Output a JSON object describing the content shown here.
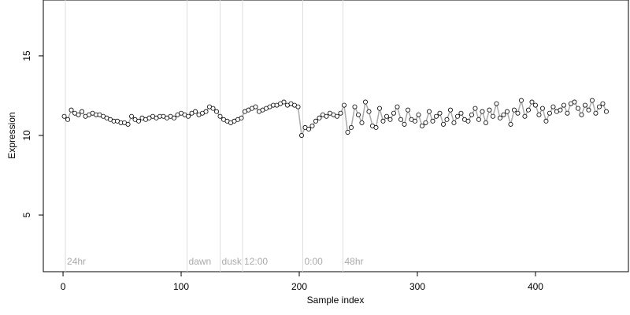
{
  "chart_data": {
    "type": "scatter",
    "x_label": "Sample index",
    "y_label": "Expression",
    "xlim": [
      -16.7,
      478.7
    ],
    "ylim": [
      1.44,
      18.51
    ],
    "xticks": [
      0,
      100,
      200,
      300,
      400
    ],
    "yticks": [
      5,
      10,
      15
    ],
    "point_color": "#ffffff",
    "line_color": "#aaaaaa",
    "annotations": [
      {
        "x": 2,
        "label": "24hr"
      },
      {
        "x": 105,
        "label": "dawn"
      },
      {
        "x": 133,
        "label": "dusk"
      },
      {
        "x": 152,
        "label": "12:00"
      },
      {
        "x": 203,
        "label": "0:00"
      },
      {
        "x": 237,
        "label": "48hr"
      }
    ],
    "x": [
      1,
      4,
      7,
      10,
      13,
      16,
      19,
      22,
      25,
      28,
      31,
      34,
      37,
      40,
      43,
      46,
      49,
      52,
      55,
      58,
      61,
      64,
      67,
      70,
      73,
      76,
      79,
      82,
      85,
      88,
      91,
      94,
      97,
      100,
      103,
      106,
      109,
      112,
      115,
      118,
      121,
      124,
      127,
      130,
      133,
      136,
      139,
      142,
      145,
      148,
      151,
      154,
      157,
      160,
      163,
      166,
      169,
      172,
      175,
      178,
      181,
      184,
      187,
      190,
      193,
      196,
      199,
      202,
      205,
      208,
      211,
      214,
      217,
      220,
      223,
      226,
      229,
      232,
      235,
      238,
      241,
      244,
      247,
      250,
      253,
      256,
      259,
      262,
      265,
      268,
      271,
      274,
      277,
      280,
      283,
      286,
      289,
      292,
      295,
      298,
      301,
      304,
      307,
      310,
      313,
      316,
      319,
      322,
      325,
      328,
      331,
      334,
      337,
      340,
      343,
      346,
      349,
      352,
      355,
      358,
      361,
      364,
      367,
      370,
      373,
      376,
      379,
      382,
      385,
      388,
      391,
      394,
      397,
      400,
      403,
      406,
      409,
      412,
      415,
      418,
      421,
      424,
      427,
      430,
      433,
      436,
      439,
      442,
      445,
      448,
      451,
      454,
      457,
      460
    ],
    "values": [
      11.2,
      11.0,
      11.6,
      11.4,
      11.3,
      11.5,
      11.2,
      11.3,
      11.4,
      11.3,
      11.3,
      11.2,
      11.1,
      11.0,
      10.9,
      10.9,
      10.8,
      10.8,
      10.7,
      11.2,
      11.0,
      10.9,
      11.1,
      11.0,
      11.1,
      11.2,
      11.1,
      11.2,
      11.2,
      11.1,
      11.2,
      11.1,
      11.3,
      11.4,
      11.3,
      11.2,
      11.4,
      11.5,
      11.3,
      11.4,
      11.5,
      11.8,
      11.7,
      11.5,
      11.2,
      11.0,
      10.9,
      10.8,
      10.9,
      11.0,
      11.1,
      11.5,
      11.6,
      11.7,
      11.8,
      11.5,
      11.6,
      11.7,
      11.8,
      11.9,
      11.9,
      12.0,
      12.1,
      11.9,
      12.0,
      11.9,
      11.8,
      10.0,
      10.5,
      10.4,
      10.6,
      10.9,
      11.1,
      11.3,
      11.2,
      11.4,
      11.3,
      11.2,
      11.4,
      11.9,
      10.2,
      10.5,
      11.8,
      11.3,
      10.8,
      12.1,
      11.5,
      10.6,
      10.5,
      11.7,
      10.9,
      11.2,
      11.0,
      11.4,
      11.8,
      11.0,
      10.7,
      11.6,
      11.0,
      10.9,
      11.3,
      10.6,
      10.8,
      11.5,
      10.9,
      11.2,
      11.4,
      10.7,
      11.0,
      11.6,
      10.8,
      11.2,
      11.4,
      11.0,
      10.9,
      11.3,
      11.7,
      11.0,
      11.5,
      10.8,
      11.6,
      11.2,
      12.0,
      11.1,
      11.3,
      11.5,
      10.7,
      11.6,
      11.4,
      12.2,
      11.2,
      11.6,
      12.1,
      11.9,
      11.3,
      11.7,
      10.9,
      11.4,
      11.8,
      11.5,
      11.6,
      11.9,
      11.4,
      12.0,
      12.1,
      11.7,
      11.3,
      11.9,
      11.6,
      12.2,
      11.4,
      11.8,
      12.0,
      11.5
    ]
  }
}
